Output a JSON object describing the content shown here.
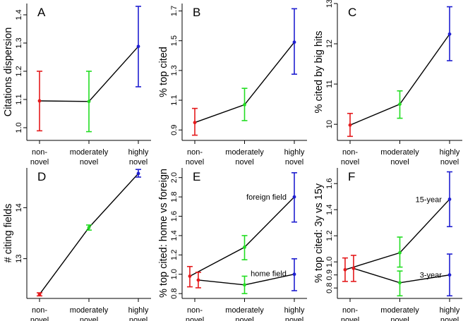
{
  "colors": {
    "non_novel": "#e41a1c",
    "moderately_novel": "#22dd22",
    "highly_novel": "#1f1fd0",
    "line": "#000000",
    "axis": "#000000"
  },
  "chart_data": [
    {
      "type": "line",
      "panel": "A",
      "ylabel": "Citations dispersion",
      "categories": [
        [
          "non-",
          "novel"
        ],
        [
          "moderately",
          "novel"
        ],
        [
          "highly",
          "novel"
        ]
      ],
      "ylim": [
        0.955,
        1.44
      ],
      "yticks": [
        1.0,
        1.1,
        1.2,
        1.3,
        1.4
      ],
      "ytick_labels": [
        "1.0",
        "1.1",
        "1.2",
        "1.3",
        "1.4"
      ],
      "series": [
        {
          "x": [
            1,
            2,
            3
          ],
          "y": [
            1.095,
            1.093,
            1.288
          ],
          "lower": [
            0.989,
            0.986,
            1.145
          ],
          "upper": [
            1.2,
            1.2,
            1.43
          ]
        }
      ],
      "annotations": []
    },
    {
      "type": "line",
      "panel": "B",
      "ylabel": "% top cited",
      "categories": [
        [
          "non-",
          "novel"
        ],
        [
          "moderately",
          "novel"
        ],
        [
          "highly",
          "novel"
        ]
      ],
      "ylim": [
        0.83,
        1.75
      ],
      "yticks": [
        0.9,
        1.1,
        1.3,
        1.5,
        1.7
      ],
      "ytick_labels": [
        "0.9",
        "1.1",
        "1.3",
        "1.5",
        "1.7"
      ],
      "series": [
        {
          "x": [
            1,
            2,
            3
          ],
          "y": [
            0.95,
            1.07,
            1.49
          ],
          "lower": [
            0.865,
            0.963,
            1.275
          ],
          "upper": [
            1.045,
            1.18,
            1.715
          ]
        }
      ],
      "annotations": []
    },
    {
      "type": "line",
      "panel": "C",
      "ylabel": "% cited by big hits",
      "categories": [
        [
          "non-",
          "novel"
        ],
        [
          "moderately",
          "novel"
        ],
        [
          "highly",
          "novel"
        ]
      ],
      "ylim": [
        9.6,
        13.0
      ],
      "yticks": [
        10,
        11,
        12,
        13
      ],
      "ytick_labels": [
        "10",
        "11",
        "12",
        "13"
      ],
      "series": [
        {
          "x": [
            1,
            2,
            3
          ],
          "y": [
            9.98,
            10.5,
            12.24
          ],
          "lower": [
            9.7,
            10.15,
            11.58
          ],
          "upper": [
            10.27,
            10.83,
            12.92
          ]
        }
      ],
      "annotations": []
    },
    {
      "type": "line",
      "panel": "D",
      "ylabel": "# citing fields",
      "categories": [
        [
          "non-",
          "novel"
        ],
        [
          "moderately",
          "novel"
        ],
        [
          "highly",
          "novel"
        ]
      ],
      "ylim": [
        12.22,
        14.78
      ],
      "yticks": [
        13,
        14
      ],
      "ytick_labels": [
        "13",
        "14"
      ],
      "series": [
        {
          "x": [
            1,
            2,
            3
          ],
          "y": [
            12.3,
            13.61,
            14.67
          ],
          "lower": [
            12.27,
            13.56,
            14.6
          ],
          "upper": [
            12.33,
            13.66,
            14.75
          ]
        }
      ],
      "annotations": []
    },
    {
      "type": "line",
      "panel": "E",
      "ylabel": "% top cited: home vs foreign",
      "categories": [
        [
          "non-",
          "novel"
        ],
        [
          "moderately",
          "novel"
        ],
        [
          "highly",
          "novel"
        ]
      ],
      "ylim": [
        0.75,
        2.1
      ],
      "yticks": [
        0.8,
        1.0,
        1.2,
        1.4,
        1.6,
        1.8,
        2.0
      ],
      "ytick_labels": [
        "0.8",
        "1.0",
        "1.2",
        "1.4",
        "1.6",
        "1.8",
        "2.0"
      ],
      "series": [
        {
          "x": [
            0.9,
            2,
            3
          ],
          "y": [
            0.98,
            1.28,
            1.8
          ],
          "lower": [
            0.87,
            1.15,
            1.54
          ],
          "upper": [
            1.08,
            1.4,
            2.05
          ]
        },
        {
          "x": [
            1.07,
            2,
            3
          ],
          "y": [
            0.94,
            0.89,
            1.0
          ],
          "lower": [
            0.86,
            0.8,
            0.83
          ],
          "upper": [
            1.02,
            0.98,
            1.16
          ]
        }
      ],
      "annotations": [
        {
          "text": "foreign field",
          "x": 2.9,
          "y": 1.8,
          "anchor": "end"
        },
        {
          "text": "home field",
          "x": 2.9,
          "y": 1.01,
          "anchor": "end"
        }
      ]
    },
    {
      "type": "line",
      "panel": "F",
      "ylabel": "% top cited: 3y vs 15y",
      "categories": [
        [
          "non-",
          "novel"
        ],
        [
          "moderately",
          "novel"
        ],
        [
          "highly",
          "novel"
        ]
      ],
      "ylim": [
        0.72,
        1.72
      ],
      "yticks": [
        0.8,
        0.9,
        1.0,
        1.2,
        1.4,
        1.6
      ],
      "ytick_labels": [
        "0.8",
        "0.9",
        "1.0",
        "1.2",
        "1.4",
        "1.6"
      ],
      "series": [
        {
          "x": [
            0.9,
            2,
            3
          ],
          "y": [
            0.94,
            1.07,
            1.48
          ],
          "lower": [
            0.85,
            0.96,
            1.27
          ],
          "upper": [
            1.03,
            1.19,
            1.69
          ]
        },
        {
          "x": [
            1.07,
            2,
            3
          ],
          "y": [
            0.95,
            0.84,
            0.9
          ],
          "lower": [
            0.85,
            0.74,
            0.74
          ],
          "upper": [
            1.05,
            0.93,
            1.06
          ]
        }
      ],
      "annotations": [
        {
          "text": "15-year",
          "x": 2.9,
          "y": 1.48,
          "anchor": "end"
        },
        {
          "text": "3-year",
          "x": 2.9,
          "y": 0.9,
          "anchor": "end"
        }
      ]
    }
  ]
}
